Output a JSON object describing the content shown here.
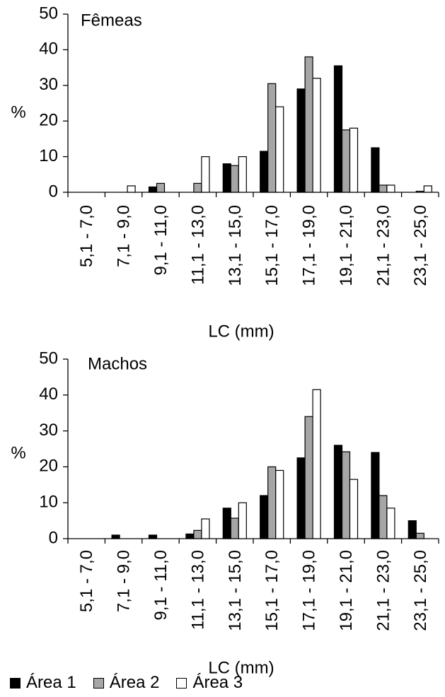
{
  "chart_data": [
    {
      "type": "bar",
      "title": "Fêmeas",
      "xlabel": "LC (mm)",
      "ylabel": "%",
      "ylim": [
        0,
        50
      ],
      "yticks": [
        0,
        10,
        20,
        30,
        40,
        50
      ],
      "grid": false,
      "categories": [
        "5,1 - 7,0",
        "7,1 - 9,0",
        "9,1 - 11,0",
        "11,1 - 13,0",
        "13,1 - 15,0",
        "15,1 - 17,0",
        "17,1 - 19,0",
        "19,1 - 21,0",
        "21,1 - 23,0",
        "23,1 - 25,0"
      ],
      "series": [
        {
          "name": "Área 1",
          "color": "#000000",
          "values": [
            0,
            0,
            1.5,
            0,
            8,
            11.5,
            29,
            35.5,
            12.5,
            0
          ]
        },
        {
          "name": "Área 2",
          "color": "#a6a6a6",
          "values": [
            0,
            0,
            2.5,
            2.5,
            7.5,
            30.5,
            38,
            17.5,
            2,
            0.3
          ]
        },
        {
          "name": "Área 3",
          "color": "#ffffff",
          "values": [
            0,
            1.8,
            0,
            10,
            10,
            24,
            32,
            18,
            2,
            1.8
          ]
        }
      ]
    },
    {
      "type": "bar",
      "title": "Machos",
      "xlabel": "LC (mm)",
      "ylabel": "%",
      "ylim": [
        0,
        50
      ],
      "yticks": [
        0,
        10,
        20,
        30,
        40,
        50
      ],
      "grid": false,
      "categories": [
        "5,1 - 7,0",
        "7,1 - 9,0",
        "9,1 - 11,0",
        "11,1 - 13,0",
        "13,1 - 15,0",
        "15,1 - 17,0",
        "17,1 - 19,0",
        "19,1 - 21,0",
        "21,1 - 23,0",
        "23,1 - 25,0"
      ],
      "series": [
        {
          "name": "Área 1",
          "color": "#000000",
          "values": [
            0,
            1,
            1,
            1.3,
            8.5,
            12,
            22.5,
            26,
            24,
            5
          ]
        },
        {
          "name": "Área 2",
          "color": "#a6a6a6",
          "values": [
            0,
            0,
            0,
            2.3,
            5.7,
            20,
            34,
            24.2,
            12,
            1.5
          ]
        },
        {
          "name": "Área 3",
          "color": "#ffffff",
          "values": [
            0,
            0,
            0,
            5.5,
            10,
            19,
            41.5,
            16.5,
            8.5,
            0
          ]
        }
      ]
    }
  ],
  "legend": {
    "items": [
      {
        "label": "Área 1",
        "color": "#000000"
      },
      {
        "label": "Área 2",
        "color": "#a6a6a6"
      },
      {
        "label": "Área 3",
        "color": "#ffffff"
      }
    ]
  }
}
